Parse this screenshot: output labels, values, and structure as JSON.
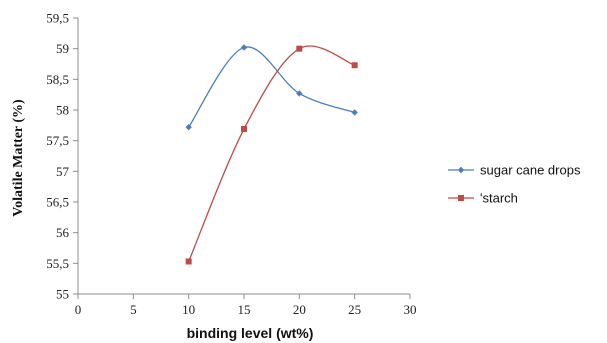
{
  "chart_data": {
    "type": "line",
    "title": "",
    "xlabel": "binding level (wt%)",
    "ylabel": "Volatile Matter (%)",
    "xlim": [
      0,
      30
    ],
    "ylim": [
      55,
      59.5
    ],
    "x_ticks": [
      "0",
      "5",
      "10",
      "15",
      "20",
      "25",
      "30"
    ],
    "y_ticks": [
      "55",
      "55,5",
      "56",
      "56,5",
      "57",
      "57,5",
      "58",
      "58,5",
      "59",
      "59,5"
    ],
    "grid": false,
    "legend_position": "right",
    "series": [
      {
        "name": "sugar cane drops",
        "color": "#4a7ebb",
        "marker": "diamond",
        "smooth": true,
        "x": [
          10,
          15,
          20,
          25
        ],
        "y": [
          57.72,
          59.02,
          58.27,
          57.96
        ]
      },
      {
        "name": "'starch",
        "color": "#be4b48",
        "marker": "square",
        "smooth": true,
        "x": [
          10,
          15,
          20,
          25
        ],
        "y": [
          55.53,
          57.69,
          59.0,
          58.73
        ]
      }
    ]
  }
}
